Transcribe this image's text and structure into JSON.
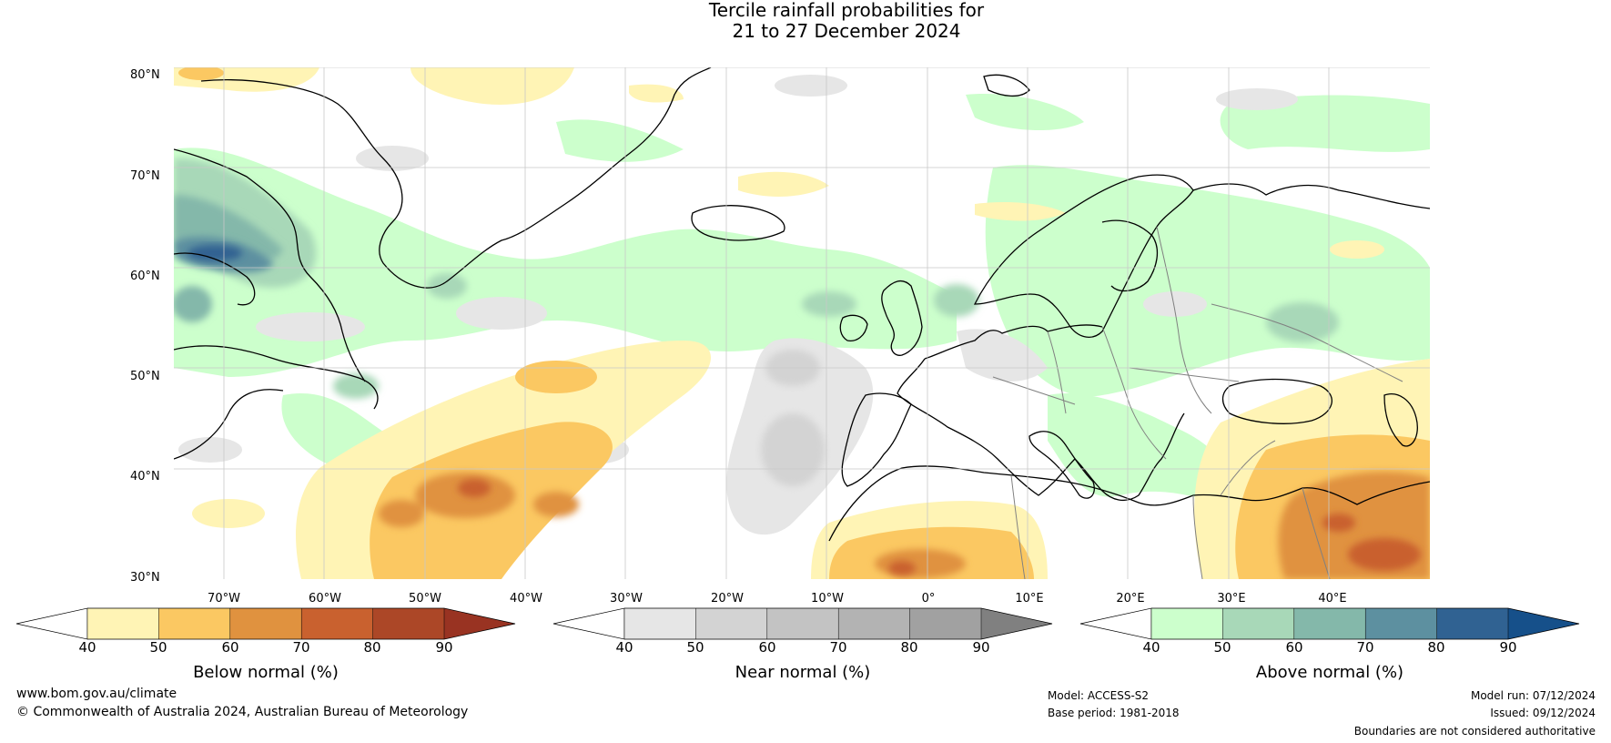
{
  "title": {
    "line1": "Tercile rainfall probabilities for",
    "line2": "21 to 27 December 2024"
  },
  "map": {
    "lat_labels": [
      "80°N",
      "70°N",
      "60°N",
      "50°N",
      "40°N",
      "30°N"
    ],
    "lon_labels": [
      "70°W",
      "60°W",
      "50°W",
      "40°W",
      "30°W",
      "20°W",
      "10°W",
      "0°",
      "10°E",
      "20°E",
      "30°E",
      "40°E"
    ],
    "extent": {
      "lon_min": -75,
      "lon_max": 50,
      "lat_min": 30,
      "lat_max": 81
    }
  },
  "colorbars": [
    {
      "caption": "Below normal (%)",
      "ticks": [
        "40",
        "50",
        "60",
        "70",
        "80",
        "90"
      ],
      "colors": [
        "#fff4b5",
        "#fbc862",
        "#e0923f",
        "#c9612f",
        "#ac4727"
      ],
      "low_color": "#ffffff",
      "high_color": "#993322"
    },
    {
      "caption": "Near normal (%)",
      "ticks": [
        "40",
        "50",
        "60",
        "70",
        "80",
        "90"
      ],
      "colors": [
        "#e6e6e6",
        "#d3d3d3",
        "#c3c3c3",
        "#b3b3b3",
        "#a1a1a1"
      ],
      "low_color": "#ffffff",
      "high_color": "#808080"
    },
    {
      "caption": "Above normal (%)",
      "ticks": [
        "40",
        "50",
        "60",
        "70",
        "80",
        "90"
      ],
      "colors": [
        "#ccffcc",
        "#a8d8b8",
        "#84b8aa",
        "#5d90a0",
        "#306292"
      ],
      "low_color": "#ffffff",
      "high_color": "#16508a"
    }
  ],
  "footer": {
    "website": "www.bom.gov.au/climate",
    "copyright": "© Commonwealth of Australia 2024, Australian Bureau of Meteorology",
    "model": "Model: ACCESS-S2",
    "base_period": "Base period: 1981-2018",
    "model_run": "Model run: 07/12/2024",
    "issued": "Issued: 09/12/2024",
    "disclaimer": "Boundaries are not considered authoritative"
  }
}
